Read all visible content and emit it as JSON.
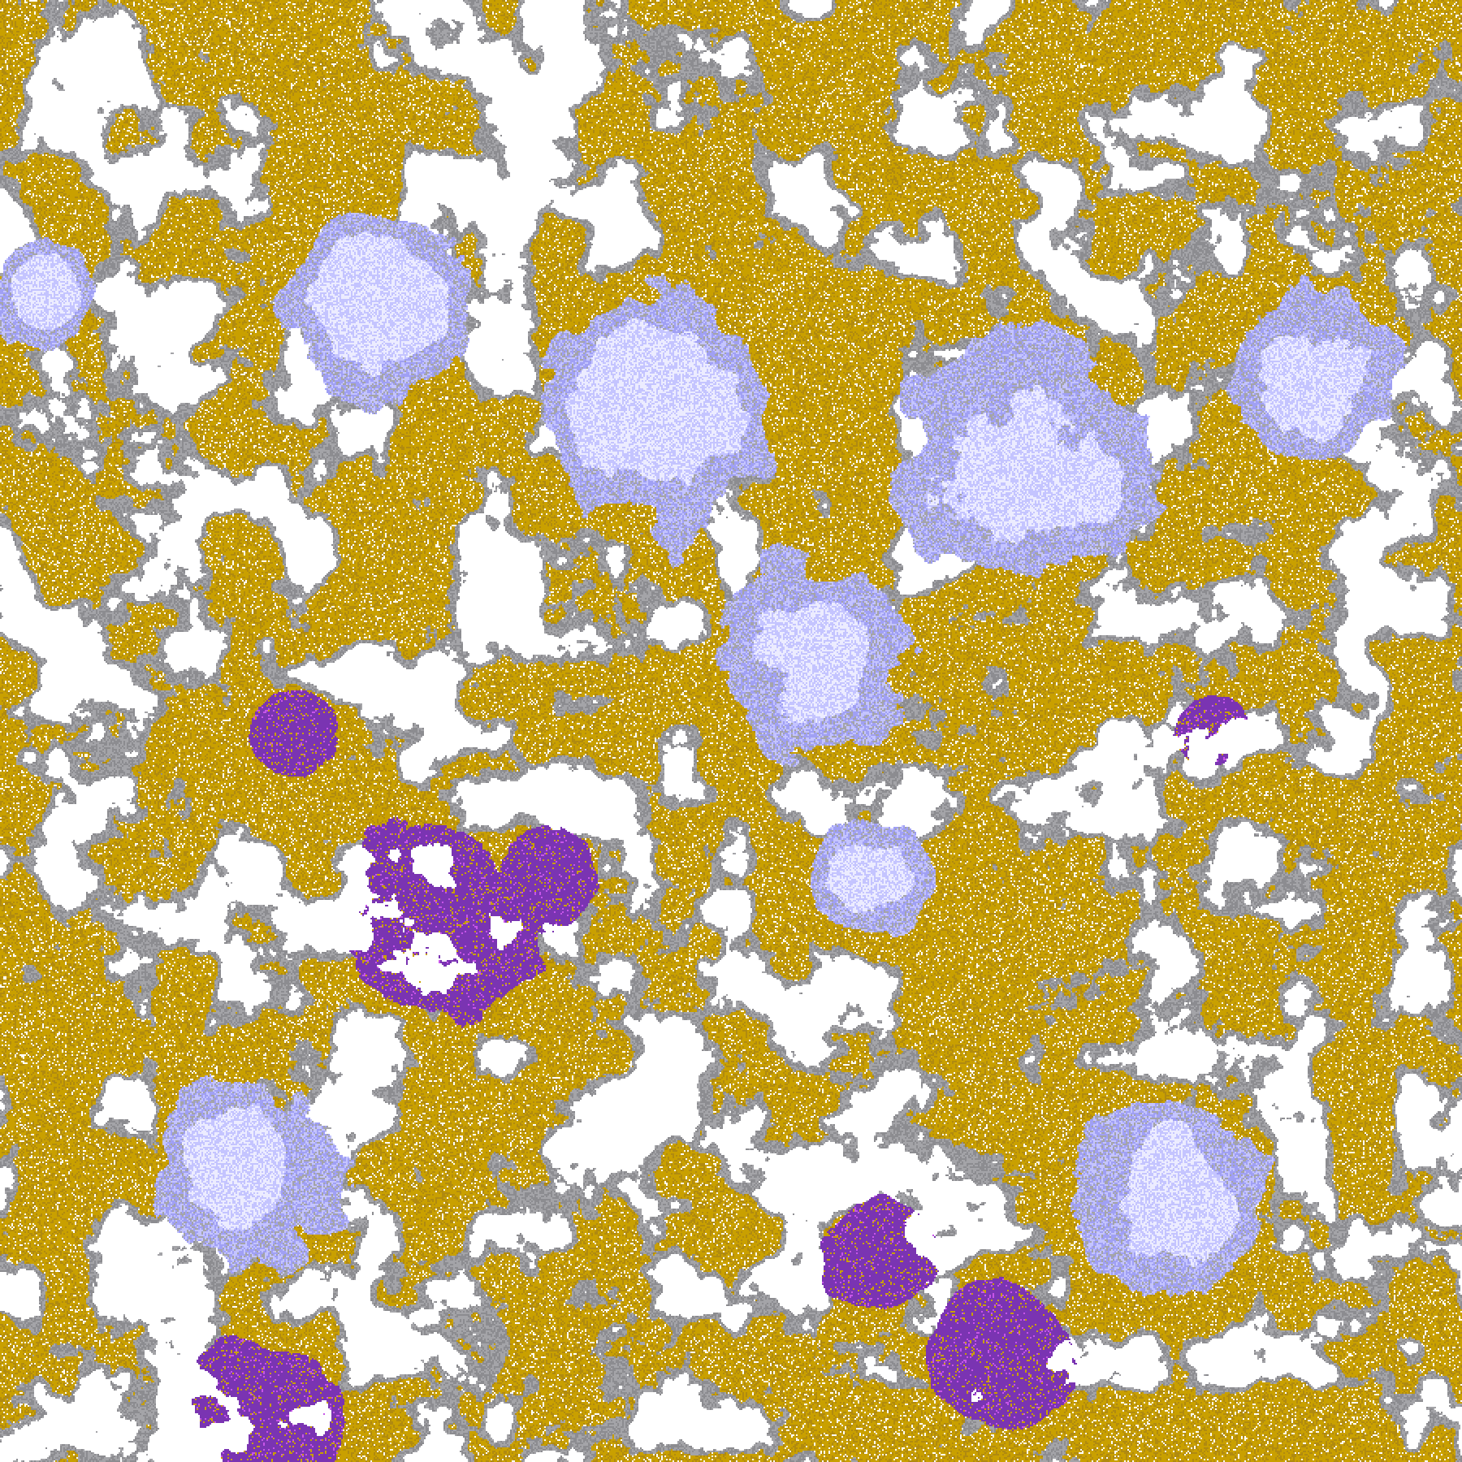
{
  "map": {
    "palette": {
      "clear": "#ffffff",
      "gray": "#a4a4a8",
      "dark_gray": "#8c8c90",
      "gold": "#c9a000",
      "dark_gold": "#b08a10",
      "lavender": "#c4c4ff",
      "pale_lavender": "#ececff",
      "periwinkle": "#a0a0f4",
      "purple": "#7a34b2",
      "magenta": "#c655e8"
    }
  }
}
